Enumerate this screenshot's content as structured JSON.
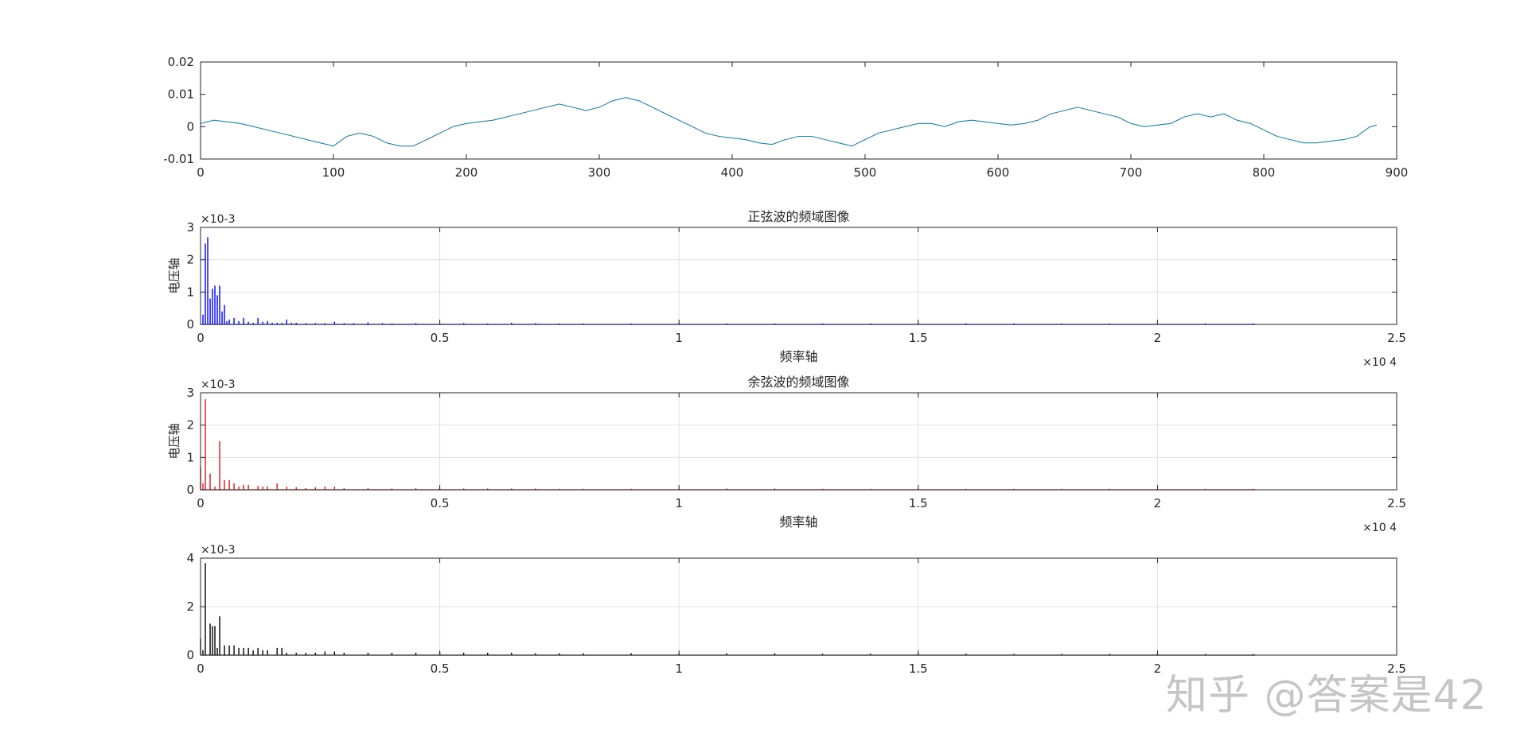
{
  "chart_data": [
    {
      "type": "line",
      "title": "",
      "xlabel": "",
      "ylabel": "",
      "exponent": "",
      "xlim": [
        0,
        900
      ],
      "ylim": [
        -0.01,
        0.02
      ],
      "xticks": [
        0,
        100,
        200,
        300,
        400,
        500,
        600,
        700,
        800,
        900
      ],
      "xtick_labels": [
        "0",
        "100",
        "200",
        "300",
        "400",
        "500",
        "600",
        "700",
        "800",
        "900"
      ],
      "yticks": [
        -0.01,
        0,
        0.01,
        0.02
      ],
      "ytick_labels": [
        "-0.01",
        "0",
        "0.01",
        "0.02"
      ],
      "grid": false,
      "color": "#2a7f9e",
      "series": [
        {
          "x": [
            0,
            10,
            20,
            30,
            40,
            50,
            60,
            70,
            80,
            90,
            100,
            110,
            120,
            130,
            140,
            150,
            160,
            170,
            180,
            190,
            200,
            210,
            220,
            230,
            240,
            250,
            260,
            270,
            280,
            290,
            300,
            310,
            320,
            330,
            340,
            350,
            360,
            370,
            380,
            390,
            400,
            410,
            420,
            430,
            440,
            450,
            460,
            470,
            480,
            490,
            500,
            510,
            520,
            530,
            540,
            550,
            560,
            570,
            580,
            590,
            600,
            610,
            620,
            630,
            640,
            650,
            660,
            670,
            680,
            690,
            700,
            710,
            720,
            730,
            740,
            750,
            760,
            770,
            780,
            790,
            800,
            810,
            820,
            830,
            840,
            850,
            860,
            870,
            880,
            885
          ],
          "y": [
            0.001,
            0.002,
            0.0015,
            0.001,
            0.0,
            -0.001,
            -0.002,
            -0.003,
            -0.004,
            -0.005,
            -0.006,
            -0.003,
            -0.002,
            -0.003,
            -0.005,
            -0.006,
            -0.006,
            -0.004,
            -0.002,
            0.0,
            0.001,
            0.0015,
            0.002,
            0.003,
            0.004,
            0.005,
            0.006,
            0.007,
            0.006,
            0.005,
            0.006,
            0.008,
            0.009,
            0.008,
            0.006,
            0.004,
            0.002,
            0.0,
            -0.002,
            -0.003,
            -0.0035,
            -0.004,
            -0.005,
            -0.0055,
            -0.004,
            -0.003,
            -0.003,
            -0.004,
            -0.005,
            -0.006,
            -0.004,
            -0.002,
            -0.001,
            0.0,
            0.001,
            0.001,
            0.0,
            0.0015,
            0.002,
            0.0015,
            0.001,
            0.0005,
            0.001,
            0.002,
            0.004,
            0.005,
            0.006,
            0.005,
            0.004,
            0.003,
            0.001,
            0.0,
            0.0005,
            0.001,
            0.003,
            0.004,
            0.003,
            0.004,
            0.002,
            0.001,
            -0.001,
            -0.003,
            -0.004,
            -0.005,
            -0.005,
            -0.0045,
            -0.004,
            -0.003,
            0.0,
            0.0005
          ]
        }
      ]
    },
    {
      "type": "stem",
      "title": "正弦波的频域图像",
      "xlabel": "频率轴",
      "ylabel": "电压轴",
      "exponent": "×10-3",
      "x_exponent": "×10 4",
      "xlim": [
        0,
        25000
      ],
      "ylim": [
        0,
        0.003
      ],
      "xticks": [
        0,
        5000,
        10000,
        15000,
        20000,
        25000
      ],
      "xtick_labels": [
        "0",
        "0.5",
        "1",
        "1.5",
        "2",
        "2.5"
      ],
      "yticks": [
        0,
        0.001,
        0.002,
        0.003
      ],
      "ytick_labels": [
        "0",
        "1",
        "2",
        "3"
      ],
      "grid": true,
      "color": "#0000ff",
      "baseline_end": 22050,
      "x": [
        50,
        100,
        150,
        200,
        250,
        300,
        350,
        400,
        450,
        500,
        550,
        600,
        700,
        800,
        900,
        1000,
        1100,
        1200,
        1300,
        1400,
        1500,
        1600,
        1700,
        1800,
        1900,
        2000,
        2200,
        2400,
        2600,
        2800,
        3000,
        3200,
        3500,
        3800,
        4000,
        4500,
        5000,
        5500,
        6000,
        6500,
        7000,
        7500,
        8000,
        9000,
        10000,
        11000,
        12000,
        13000,
        14000,
        15000,
        16000,
        17000,
        18000,
        19000,
        20000,
        21000,
        22000
      ],
      "y": [
        0.0003,
        0.0025,
        0.0027,
        0.0008,
        0.0011,
        0.0012,
        0.0009,
        0.0012,
        0.0004,
        0.0006,
        0.0001,
        0.00015,
        0.0002,
        0.0001,
        0.0002,
        8e-05,
        5e-05,
        0.0002,
        8e-05,
        0.0001,
        5e-05,
        5e-05,
        5e-05,
        0.00015,
        5e-05,
        5e-05,
        4e-05,
        4e-05,
        4e-05,
        8e-05,
        4e-05,
        4e-05,
        6e-05,
        4e-05,
        3e-05,
        4e-05,
        4e-05,
        4e-05,
        3e-05,
        5e-05,
        4e-05,
        3e-05,
        3e-05,
        3e-05,
        5e-05,
        3e-05,
        3e-05,
        3e-05,
        3e-05,
        4e-05,
        3e-05,
        3e-05,
        3e-05,
        3e-05,
        3e-05,
        3e-05,
        3e-05
      ]
    },
    {
      "type": "stem",
      "title": "余弦波的频域图像",
      "xlabel": "频率轴",
      "ylabel": "电压轴",
      "exponent": "×10-3",
      "x_exponent": "×10 4",
      "xlim": [
        0,
        25000
      ],
      "ylim": [
        0,
        0.003
      ],
      "xticks": [
        0,
        5000,
        10000,
        15000,
        20000,
        25000
      ],
      "xtick_labels": [
        "0",
        "0.5",
        "1",
        "1.5",
        "2",
        "2.5"
      ],
      "yticks": [
        0,
        0.001,
        0.002,
        0.003
      ],
      "ytick_labels": [
        "0",
        "1",
        "2",
        "3"
      ],
      "grid": true,
      "color": "#d7191c",
      "baseline_end": 22050,
      "x": [
        0,
        50,
        100,
        200,
        300,
        400,
        500,
        600,
        700,
        800,
        900,
        1000,
        1200,
        1300,
        1400,
        1600,
        1800,
        2000,
        2200,
        2400,
        2600,
        2800,
        3000,
        3500,
        4000,
        4500,
        5000,
        5500,
        6000,
        6500,
        7000,
        7500,
        8000,
        9000,
        10000,
        11000,
        12000,
        13000,
        14000,
        15000,
        16000,
        17000,
        18000,
        19000,
        20000,
        21000,
        22000
      ],
      "y": [
        0.0007,
        0.0002,
        0.0028,
        0.0005,
        0.0001,
        0.0015,
        0.0003,
        0.0003,
        0.0002,
        0.0001,
        0.00015,
        0.00015,
        0.00012,
        0.0001,
        0.0001,
        0.0002,
        0.0001,
        8e-05,
        5e-05,
        8e-05,
        0.0001,
        0.0001,
        5e-05,
        5e-05,
        4e-05,
        5e-05,
        6e-05,
        4e-05,
        4e-05,
        4e-05,
        4e-05,
        3e-05,
        3e-05,
        3e-05,
        4e-05,
        4e-05,
        4e-05,
        3e-05,
        3e-05,
        4e-05,
        3e-05,
        3e-05,
        3e-05,
        3e-05,
        3e-05,
        3e-05,
        3e-05
      ]
    },
    {
      "type": "stem",
      "title": "",
      "xlabel": "",
      "ylabel": "",
      "exponent": "×10-3",
      "x_exponent": "",
      "xlim": [
        0,
        25000
      ],
      "ylim": [
        0,
        0.004
      ],
      "xticks": [
        0,
        5000,
        10000,
        15000,
        20000,
        25000
      ],
      "xtick_labels": [
        "0",
        "0.5",
        "1",
        "1.5",
        "2",
        "2.5"
      ],
      "yticks": [
        0,
        0.002,
        0.004
      ],
      "ytick_labels": [
        "0",
        "2",
        "4"
      ],
      "grid": true,
      "color": "#000000",
      "baseline_end": 22050,
      "x": [
        0,
        50,
        100,
        200,
        250,
        300,
        350,
        400,
        500,
        600,
        700,
        800,
        900,
        1000,
        1100,
        1200,
        1300,
        1400,
        1600,
        1700,
        1800,
        2000,
        2200,
        2400,
        2600,
        2800,
        3000,
        3500,
        4000,
        4500,
        5000,
        5500,
        6000,
        6500,
        7000,
        7500,
        8000,
        9000,
        10000,
        11000,
        12000,
        13000,
        14000,
        15000,
        16000,
        17000,
        18000,
        19000,
        20000,
        21000,
        22000
      ],
      "y": [
        0.0007,
        0.0002,
        0.0038,
        0.0013,
        0.0012,
        0.0012,
        0.0003,
        0.0016,
        0.0004,
        0.0004,
        0.0004,
        0.0003,
        0.0003,
        0.0003,
        0.0002,
        0.0003,
        0.0002,
        0.0002,
        0.0003,
        0.0003,
        0.0001,
        0.0001,
        0.0001,
        0.0001,
        0.00015,
        0.00015,
        0.0001,
        0.0001,
        0.0001,
        0.0001,
        0.00012,
        0.0001,
        0.0001,
        0.0001,
        8e-05,
        8e-05,
        8e-05,
        8e-05,
        8e-05,
        8e-05,
        8e-05,
        6e-05,
        6e-05,
        8e-05,
        6e-05,
        5e-05,
        5e-05,
        5e-05,
        5e-05,
        5e-05,
        5e-05
      ]
    }
  ],
  "watermark": "知乎 @答案是42"
}
